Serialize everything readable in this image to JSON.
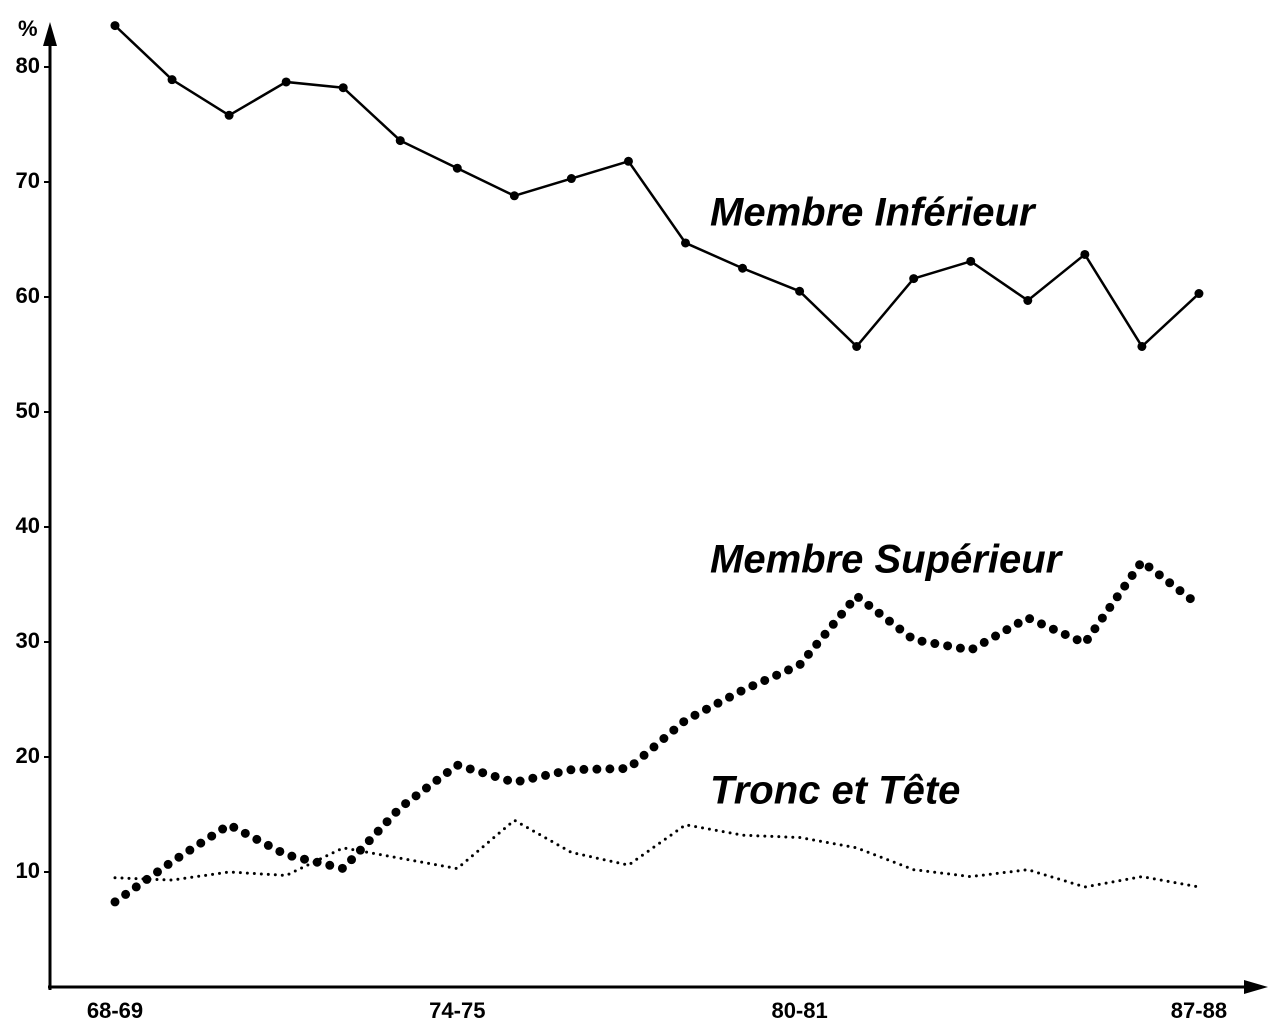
{
  "chart_data": {
    "type": "line",
    "y_label": "%",
    "categories": [
      "68-69",
      null,
      null,
      null,
      null,
      null,
      "74-75",
      null,
      null,
      null,
      null,
      null,
      "80-81",
      null,
      null,
      null,
      null,
      null,
      null,
      "87-88"
    ],
    "ylim": [
      0,
      84
    ],
    "yticks": [
      10,
      20,
      30,
      40,
      50,
      60,
      70,
      80
    ],
    "grid": false,
    "series": [
      {
        "name": "Membre Inférieur",
        "color": "#000000",
        "style": "solid",
        "values": [
          83.6,
          78.9,
          75.8,
          78.7,
          78.2,
          73.6,
          71.2,
          68.8,
          70.3,
          71.8,
          64.7,
          62.5,
          60.5,
          55.7,
          61.6,
          63.1,
          59.7,
          63.7,
          55.7,
          60.3
        ]
      },
      {
        "name": "Membre Supérieur",
        "color": "#000000",
        "style": "heavy-dots",
        "values": [
          7.4,
          10.9,
          14.1,
          11.5,
          10.3,
          15.6,
          19.3,
          17.8,
          18.9,
          19.0,
          23.2,
          25.8,
          28.0,
          34.0,
          30.2,
          29.3,
          32.1,
          29.9,
          37.0,
          33.2
        ]
      },
      {
        "name": "Tronc et Tête",
        "color": "#000000",
        "style": "fine-dots",
        "values": [
          9.5,
          9.3,
          10.0,
          9.7,
          12.1,
          11.2,
          10.3,
          14.5,
          11.7,
          10.6,
          14.1,
          13.2,
          13.0,
          12.1,
          10.2,
          9.6,
          10.2,
          8.7,
          9.6,
          8.7
        ]
      }
    ]
  }
}
